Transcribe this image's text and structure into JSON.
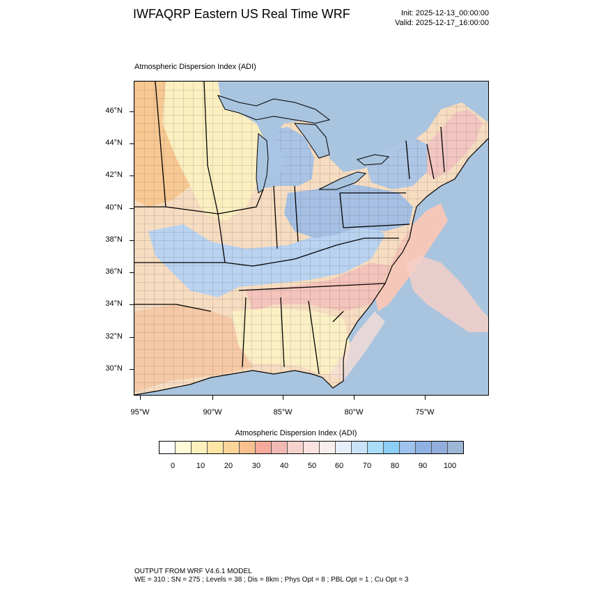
{
  "header": {
    "title": "IWFAQRP Eastern US Real Time WRF",
    "init": "Init: 2025-12-13_00:00:00",
    "valid": "Valid: 2025-12-17_16:00:00"
  },
  "plot": {
    "subtitle": "Atmospheric Dispersion Index   (ADI)",
    "lat_labels": [
      "46°N",
      "44°N",
      "42°N",
      "40°N",
      "38°N",
      "36°N",
      "34°N",
      "32°N",
      "30°N"
    ],
    "lon_labels": [
      "95°W",
      "90°W",
      "85°W",
      "80°W",
      "75°W"
    ]
  },
  "colorbar": {
    "title": "Atmospheric Dispersion Index  (ADI)",
    "labels": [
      "0",
      "10",
      "20",
      "30",
      "40",
      "50",
      "60",
      "70",
      "80",
      "90",
      "100"
    ],
    "colors": [
      "#ffffff",
      "#fffbd8",
      "#fff1bd",
      "#fde6a5",
      "#fbd49a",
      "#f8c08e",
      "#f4a99a",
      "#f2b8b4",
      "#f6d2cd",
      "#fae3df",
      "#f9eeee",
      "#e6eefa",
      "#c9e2f7",
      "#a9dcf7",
      "#8ccdf5",
      "#9fc3ec",
      "#8fb0e3",
      "#92aede",
      "#9bb7d6"
    ]
  },
  "footer": {
    "line1": "OUTPUT FROM WRF V4.6.1 MODEL",
    "line2": "WE = 310 ; SN = 275 ; Levels = 38 ; Dis = 8km ; Phys Opt = 8 ; PBL Opt = 1 ; Cu Opt = 3"
  },
  "colors": {
    "water": "#a9c4de",
    "land_warm": "#f8cfa0",
    "land_yellow": "#fbf1c0",
    "land_blue": "#bcd2ee"
  }
}
